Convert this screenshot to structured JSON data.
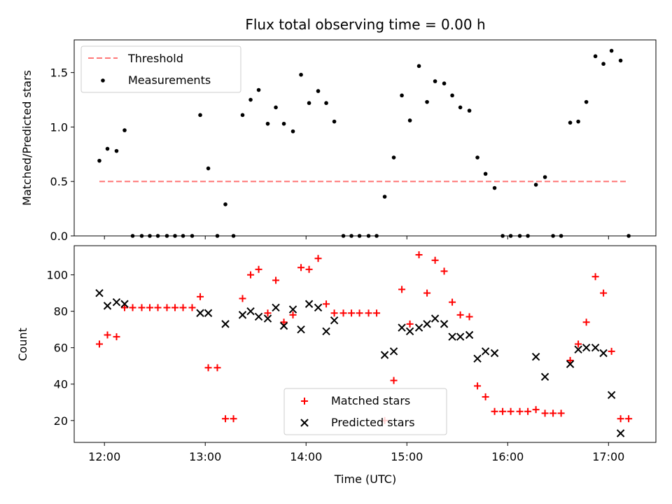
{
  "chart_data": [
    {
      "type": "scatter",
      "title": "Flux total observing time = 0.00 h",
      "xlabel": "",
      "ylabel": "Matched/Predicted stars",
      "xlim": [
        11.7,
        17.47
      ],
      "ylim": [
        0,
        1.8
      ],
      "yticks": [
        0,
        0.5,
        1.0,
        1.5
      ],
      "ytick_labels": [
        "0.0",
        "0.5",
        "1.0",
        "1.5"
      ],
      "legend_position": "upper-left",
      "threshold": {
        "name": "Threshold",
        "value": 0.5,
        "x_range": [
          11.95,
          17.2
        ],
        "color": "#ff7777"
      },
      "series": [
        {
          "name": "Measurements",
          "color": "#000000",
          "marker": "dot",
          "points": [
            [
              11.95,
              0.69
            ],
            [
              12.03,
              0.8
            ],
            [
              12.12,
              0.78
            ],
            [
              12.2,
              0.97
            ],
            [
              12.28,
              0
            ],
            [
              12.37,
              0
            ],
            [
              12.45,
              0
            ],
            [
              12.53,
              0
            ],
            [
              12.62,
              0
            ],
            [
              12.7,
              0
            ],
            [
              12.78,
              0
            ],
            [
              12.87,
              0
            ],
            [
              12.95,
              1.11
            ],
            [
              13.03,
              0.62
            ],
            [
              13.12,
              0
            ],
            [
              13.2,
              0.29
            ],
            [
              13.28,
              0
            ],
            [
              13.37,
              1.11
            ],
            [
              13.45,
              1.25
            ],
            [
              13.53,
              1.34
            ],
            [
              13.62,
              1.03
            ],
            [
              13.7,
              1.18
            ],
            [
              13.78,
              1.03
            ],
            [
              13.87,
              0.96
            ],
            [
              13.95,
              1.48
            ],
            [
              14.03,
              1.22
            ],
            [
              14.12,
              1.33
            ],
            [
              14.2,
              1.22
            ],
            [
              14.28,
              1.05
            ],
            [
              14.37,
              0
            ],
            [
              14.45,
              0
            ],
            [
              14.53,
              0
            ],
            [
              14.62,
              0
            ],
            [
              14.7,
              0
            ],
            [
              14.78,
              0.36
            ],
            [
              14.87,
              0.72
            ],
            [
              14.95,
              1.29
            ],
            [
              15.03,
              1.06
            ],
            [
              15.12,
              1.56
            ],
            [
              15.2,
              1.23
            ],
            [
              15.28,
              1.42
            ],
            [
              15.37,
              1.4
            ],
            [
              15.45,
              1.29
            ],
            [
              15.53,
              1.18
            ],
            [
              15.62,
              1.15
            ],
            [
              15.7,
              0.72
            ],
            [
              15.78,
              0.57
            ],
            [
              15.87,
              0.44
            ],
            [
              15.95,
              0
            ],
            [
              16.03,
              0
            ],
            [
              16.12,
              0
            ],
            [
              16.2,
              0
            ],
            [
              16.28,
              0.47
            ],
            [
              16.37,
              0.54
            ],
            [
              16.45,
              0
            ],
            [
              16.53,
              0
            ],
            [
              16.62,
              1.04
            ],
            [
              16.7,
              1.05
            ],
            [
              16.78,
              1.23
            ],
            [
              16.87,
              1.65
            ],
            [
              16.95,
              1.58
            ],
            [
              17.03,
              1.7
            ],
            [
              17.12,
              1.61
            ],
            [
              17.2,
              0
            ]
          ]
        }
      ]
    },
    {
      "type": "scatter",
      "title": "",
      "xlabel": "Time (UTC)",
      "ylabel": "Count",
      "xlim": [
        11.7,
        17.47
      ],
      "ylim": [
        8,
        116
      ],
      "yticks": [
        20,
        40,
        60,
        80,
        100
      ],
      "ytick_labels": [
        "20",
        "40",
        "60",
        "80",
        "100"
      ],
      "xticks": [
        12,
        13,
        14,
        15,
        16,
        17
      ],
      "xtick_labels": [
        "12:00",
        "13:00",
        "14:00",
        "15:00",
        "16:00",
        "17:00"
      ],
      "legend_position": "lower-center",
      "series": [
        {
          "name": "Matched stars",
          "color": "#ff0000",
          "marker": "plus",
          "points": [
            [
              11.95,
              62
            ],
            [
              12.03,
              67
            ],
            [
              12.12,
              66
            ],
            [
              12.2,
              82
            ],
            [
              12.28,
              82
            ],
            [
              12.37,
              82
            ],
            [
              12.45,
              82
            ],
            [
              12.53,
              82
            ],
            [
              12.62,
              82
            ],
            [
              12.7,
              82
            ],
            [
              12.78,
              82
            ],
            [
              12.87,
              82
            ],
            [
              12.95,
              88
            ],
            [
              13.03,
              49
            ],
            [
              13.12,
              49
            ],
            [
              13.2,
              21
            ],
            [
              13.28,
              21
            ],
            [
              13.37,
              87
            ],
            [
              13.45,
              100
            ],
            [
              13.53,
              103
            ],
            [
              13.62,
              79
            ],
            [
              13.7,
              97
            ],
            [
              13.78,
              74
            ],
            [
              13.87,
              78
            ],
            [
              13.95,
              104
            ],
            [
              14.03,
              103
            ],
            [
              14.12,
              109
            ],
            [
              14.2,
              84
            ],
            [
              14.28,
              79
            ],
            [
              14.37,
              79
            ],
            [
              14.45,
              79
            ],
            [
              14.53,
              79
            ],
            [
              14.62,
              79
            ],
            [
              14.7,
              79
            ],
            [
              14.78,
              20
            ],
            [
              14.87,
              42
            ],
            [
              14.95,
              92
            ],
            [
              15.03,
              73
            ],
            [
              15.12,
              111
            ],
            [
              15.2,
              90
            ],
            [
              15.28,
              108
            ],
            [
              15.37,
              102
            ],
            [
              15.45,
              85
            ],
            [
              15.53,
              78
            ],
            [
              15.62,
              77
            ],
            [
              15.7,
              39
            ],
            [
              15.78,
              33
            ],
            [
              15.87,
              25
            ],
            [
              15.95,
              25
            ],
            [
              16.03,
              25
            ],
            [
              16.12,
              25
            ],
            [
              16.2,
              25
            ],
            [
              16.28,
              26
            ],
            [
              16.37,
              24
            ],
            [
              16.45,
              24
            ],
            [
              16.53,
              24
            ],
            [
              16.62,
              53
            ],
            [
              16.7,
              62
            ],
            [
              16.78,
              74
            ],
            [
              16.87,
              99
            ],
            [
              16.95,
              90
            ],
            [
              17.03,
              58
            ],
            [
              17.12,
              21
            ],
            [
              17.2,
              21
            ]
          ]
        },
        {
          "name": "Predicted stars",
          "color": "#000000",
          "marker": "x",
          "points": [
            [
              11.95,
              90
            ],
            [
              12.03,
              83
            ],
            [
              12.12,
              85
            ],
            [
              12.2,
              84
            ],
            [
              12.95,
              79
            ],
            [
              13.03,
              79
            ],
            [
              13.2,
              73
            ],
            [
              13.37,
              78
            ],
            [
              13.45,
              80
            ],
            [
              13.53,
              77
            ],
            [
              13.62,
              76
            ],
            [
              13.7,
              82
            ],
            [
              13.78,
              72
            ],
            [
              13.87,
              81
            ],
            [
              13.95,
              70
            ],
            [
              14.03,
              84
            ],
            [
              14.12,
              82
            ],
            [
              14.2,
              69
            ],
            [
              14.28,
              75
            ],
            [
              14.78,
              56
            ],
            [
              14.87,
              58
            ],
            [
              14.95,
              71
            ],
            [
              15.03,
              69
            ],
            [
              15.12,
              71
            ],
            [
              15.2,
              73
            ],
            [
              15.28,
              76
            ],
            [
              15.37,
              73
            ],
            [
              15.45,
              66
            ],
            [
              15.53,
              66
            ],
            [
              15.62,
              67
            ],
            [
              15.7,
              54
            ],
            [
              15.78,
              58
            ],
            [
              15.87,
              57
            ],
            [
              16.28,
              55
            ],
            [
              16.37,
              44
            ],
            [
              16.62,
              51
            ],
            [
              16.7,
              59
            ],
            [
              16.78,
              60
            ],
            [
              16.87,
              60
            ],
            [
              16.95,
              57
            ],
            [
              17.03,
              34
            ],
            [
              17.12,
              13
            ]
          ]
        }
      ]
    }
  ]
}
